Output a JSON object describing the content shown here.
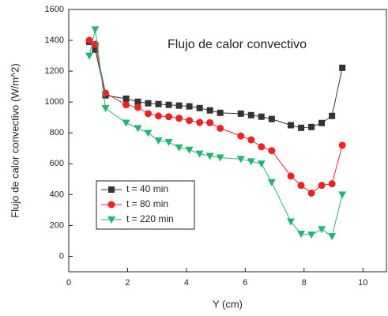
{
  "chart_data": {
    "type": "line",
    "title": "Flujo de calor convectivo",
    "xlabel": "Y (cm)",
    "ylabel": "Flujo de calor convectivo (W/m^2)",
    "x": [
      0.7,
      0.9,
      1.25,
      1.95,
      2.35,
      2.7,
      3.05,
      3.4,
      3.75,
      4.1,
      4.45,
      4.8,
      5.15,
      5.85,
      6.2,
      6.55,
      6.9,
      7.55,
      7.9,
      8.25,
      8.6,
      8.95,
      9.3
    ],
    "series": [
      {
        "name": "t = 40 min",
        "color": "#333333",
        "marker": "square",
        "values": [
          1390,
          1340,
          1043,
          1022,
          1002,
          992,
          987,
          982,
          977,
          972,
          961,
          946,
          930,
          925,
          915,
          905,
          890,
          850,
          833,
          838,
          864,
          910,
          1222
        ]
      },
      {
        "name": "t = 80 min",
        "color": "#ee2222",
        "marker": "circle",
        "values": [
          1400,
          1375,
          1058,
          982,
          966,
          925,
          910,
          905,
          895,
          880,
          868,
          866,
          830,
          780,
          755,
          710,
          685,
          520,
          460,
          410,
          460,
          470,
          720
        ]
      },
      {
        "name": "t = 220 min",
        "color": "#22b573",
        "marker": "triangle-down",
        "values": [
          1300,
          1470,
          960,
          865,
          830,
          800,
          750,
          740,
          705,
          690,
          665,
          650,
          640,
          630,
          615,
          600,
          480,
          225,
          145,
          140,
          175,
          130,
          400
        ]
      }
    ],
    "xlim": [
      0,
      10.8
    ],
    "xticks": [
      0,
      2,
      4,
      6,
      8,
      10
    ],
    "ylim": [
      -100,
      1600
    ],
    "yticks": [
      0,
      200,
      400,
      600,
      800,
      1000,
      1200,
      1400,
      1600
    ],
    "legend": "lower left"
  }
}
